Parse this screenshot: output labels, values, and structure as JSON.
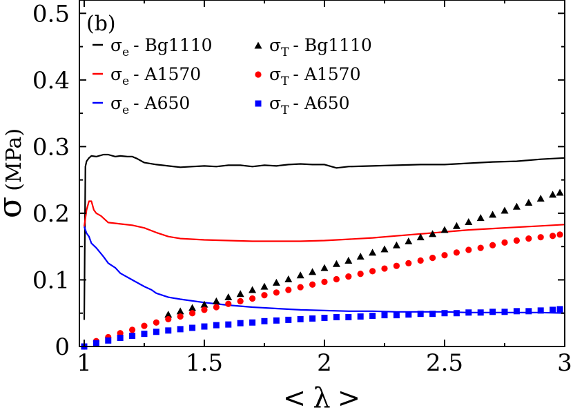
{
  "chart_data": {
    "type": "line",
    "panel_label": "(b)",
    "xlabel": {
      "left": "<",
      "symbol": "λ",
      "right": ">"
    },
    "ylabel": {
      "symbol": "σ",
      "unit": "(MPa)"
    },
    "xlim": [
      0.98,
      3.0
    ],
    "ylim": [
      0,
      0.52
    ],
    "xticks": [
      1,
      1.5,
      2,
      2.5,
      3
    ],
    "xtick_labels": [
      "1",
      "1.5",
      "2",
      "2.5",
      "3"
    ],
    "yticks": [
      0,
      0.1,
      0.2,
      0.3,
      0.4,
      0.5
    ],
    "ytick_labels": [
      "0",
      "0.1",
      "0.2",
      "0.3",
      "0.4",
      "0.5"
    ],
    "legend_position": "top-left",
    "series": [
      {
        "name": "σe - Bg1110",
        "sym": "σ",
        "sub": "e",
        "label": "- Bg1110",
        "kind": "line",
        "color": "#000000",
        "x": [
          1.0,
          1.005,
          1.01,
          1.02,
          1.03,
          1.05,
          1.08,
          1.1,
          1.13,
          1.15,
          1.18,
          1.2,
          1.22,
          1.25,
          1.3,
          1.35,
          1.4,
          1.45,
          1.5,
          1.55,
          1.6,
          1.65,
          1.7,
          1.75,
          1.8,
          1.85,
          1.9,
          1.95,
          2.0,
          2.05,
          2.1,
          2.2,
          2.3,
          2.4,
          2.5,
          2.6,
          2.7,
          2.8,
          2.9,
          3.0
        ],
        "y": [
          0.04,
          0.27,
          0.278,
          0.283,
          0.286,
          0.285,
          0.288,
          0.288,
          0.285,
          0.286,
          0.285,
          0.285,
          0.282,
          0.276,
          0.273,
          0.271,
          0.269,
          0.27,
          0.271,
          0.27,
          0.272,
          0.272,
          0.27,
          0.272,
          0.271,
          0.273,
          0.274,
          0.273,
          0.273,
          0.268,
          0.27,
          0.271,
          0.272,
          0.273,
          0.273,
          0.275,
          0.277,
          0.278,
          0.281,
          0.283
        ]
      },
      {
        "name": "σe - A1570",
        "sym": "σ",
        "sub": "e",
        "label": "- A1570",
        "kind": "line",
        "color": "#ff0000",
        "x": [
          1.0,
          1.01,
          1.02,
          1.03,
          1.04,
          1.05,
          1.07,
          1.1,
          1.15,
          1.2,
          1.25,
          1.3,
          1.35,
          1.4,
          1.5,
          1.6,
          1.7,
          1.8,
          1.9,
          2.0,
          2.1,
          2.2,
          2.3,
          2.4,
          2.5,
          2.6,
          2.7,
          2.8,
          2.9,
          3.0
        ],
        "y": [
          0.18,
          0.205,
          0.218,
          0.218,
          0.205,
          0.2,
          0.196,
          0.186,
          0.184,
          0.182,
          0.178,
          0.171,
          0.165,
          0.162,
          0.16,
          0.159,
          0.158,
          0.158,
          0.158,
          0.159,
          0.161,
          0.163,
          0.166,
          0.169,
          0.172,
          0.175,
          0.177,
          0.179,
          0.181,
          0.183
        ]
      },
      {
        "name": "σe - A650",
        "sym": "σ",
        "sub": "e",
        "label": "- A650",
        "kind": "line",
        "color": "#0000ff",
        "x": [
          1.0,
          1.01,
          1.02,
          1.03,
          1.05,
          1.08,
          1.1,
          1.13,
          1.15,
          1.2,
          1.25,
          1.28,
          1.3,
          1.35,
          1.4,
          1.5,
          1.6,
          1.7,
          1.8,
          1.9,
          2.0,
          2.1,
          2.2,
          2.3,
          2.4,
          2.5,
          2.6,
          2.7,
          2.8,
          2.9,
          3.0
        ],
        "y": [
          0.18,
          0.17,
          0.165,
          0.155,
          0.148,
          0.135,
          0.125,
          0.118,
          0.11,
          0.1,
          0.09,
          0.085,
          0.08,
          0.074,
          0.071,
          0.066,
          0.062,
          0.059,
          0.057,
          0.055,
          0.054,
          0.053,
          0.053,
          0.052,
          0.052,
          0.052,
          0.051,
          0.051,
          0.051,
          0.051,
          0.05
        ]
      },
      {
        "name": "σT - Bg1110",
        "sym": "σ",
        "sub": "T",
        "label": "- Bg1110",
        "kind": "triangle",
        "color": "#000000",
        "x": [
          1.35,
          1.4,
          1.45,
          1.5,
          1.55,
          1.6,
          1.65,
          1.7,
          1.75,
          1.8,
          1.85,
          1.9,
          1.95,
          2.0,
          2.05,
          2.1,
          2.15,
          2.2,
          2.25,
          2.3,
          2.35,
          2.4,
          2.45,
          2.5,
          2.55,
          2.6,
          2.65,
          2.7,
          2.75,
          2.8,
          2.85,
          2.9,
          2.95,
          2.98
        ],
        "y": [
          0.048,
          0.053,
          0.058,
          0.063,
          0.068,
          0.074,
          0.079,
          0.085,
          0.09,
          0.096,
          0.101,
          0.107,
          0.112,
          0.118,
          0.124,
          0.129,
          0.135,
          0.141,
          0.146,
          0.152,
          0.158,
          0.164,
          0.169,
          0.175,
          0.181,
          0.187,
          0.193,
          0.198,
          0.204,
          0.21,
          0.216,
          0.222,
          0.228,
          0.231
        ]
      },
      {
        "name": "σT - A1570",
        "sym": "σ",
        "sub": "T",
        "label": "- A1570",
        "kind": "circle",
        "color": "#ff0000",
        "x": [
          1.0,
          1.05,
          1.1,
          1.15,
          1.2,
          1.25,
          1.3,
          1.35,
          1.4,
          1.45,
          1.5,
          1.55,
          1.6,
          1.65,
          1.7,
          1.75,
          1.8,
          1.85,
          1.9,
          1.95,
          2.0,
          2.05,
          2.1,
          2.15,
          2.2,
          2.25,
          2.3,
          2.35,
          2.4,
          2.45,
          2.5,
          2.55,
          2.6,
          2.65,
          2.7,
          2.75,
          2.8,
          2.85,
          2.9,
          2.95,
          2.98
        ],
        "y": [
          0.0,
          0.008,
          0.014,
          0.02,
          0.025,
          0.031,
          0.036,
          0.041,
          0.045,
          0.05,
          0.055,
          0.059,
          0.064,
          0.068,
          0.072,
          0.077,
          0.081,
          0.085,
          0.089,
          0.093,
          0.097,
          0.101,
          0.105,
          0.109,
          0.113,
          0.117,
          0.121,
          0.125,
          0.129,
          0.133,
          0.137,
          0.141,
          0.145,
          0.148,
          0.152,
          0.156,
          0.159,
          0.162,
          0.164,
          0.166,
          0.168
        ]
      },
      {
        "name": "σT - A650",
        "sym": "σ",
        "sub": "T",
        "label": "- A650",
        "kind": "square",
        "color": "#0000ff",
        "x": [
          1.0,
          1.05,
          1.1,
          1.15,
          1.2,
          1.25,
          1.3,
          1.35,
          1.4,
          1.45,
          1.5,
          1.55,
          1.6,
          1.65,
          1.7,
          1.75,
          1.8,
          1.85,
          1.9,
          1.95,
          2.0,
          2.05,
          2.1,
          2.15,
          2.2,
          2.25,
          2.3,
          2.35,
          2.4,
          2.45,
          2.5,
          2.55,
          2.6,
          2.65,
          2.7,
          2.75,
          2.8,
          2.85,
          2.9,
          2.95,
          2.98
        ],
        "y": [
          0.0,
          0.005,
          0.009,
          0.013,
          0.016,
          0.019,
          0.022,
          0.024,
          0.026,
          0.028,
          0.03,
          0.032,
          0.033,
          0.035,
          0.036,
          0.038,
          0.039,
          0.04,
          0.041,
          0.042,
          0.043,
          0.044,
          0.044,
          0.045,
          0.046,
          0.047,
          0.047,
          0.048,
          0.049,
          0.049,
          0.05,
          0.05,
          0.051,
          0.051,
          0.052,
          0.052,
          0.053,
          0.053,
          0.054,
          0.055,
          0.056
        ]
      }
    ]
  }
}
